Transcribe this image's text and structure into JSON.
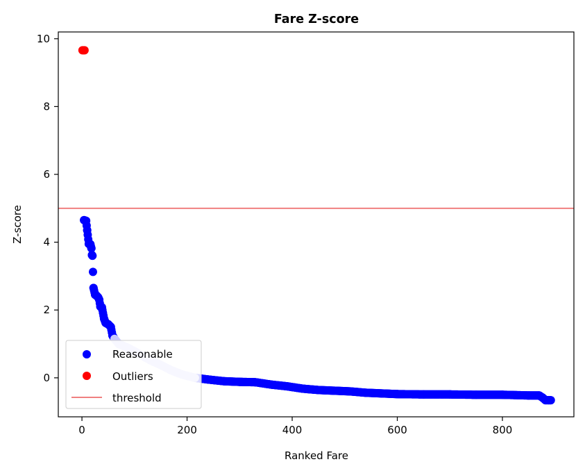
{
  "chart_data": {
    "type": "scatter",
    "title": "Fare Z-score",
    "xlabel": "Ranked Fare",
    "ylabel": "Z-score",
    "xlim": [
      -45,
      936
    ],
    "ylim": [
      -1.15,
      10.2
    ],
    "xticks": [
      0,
      200,
      400,
      600,
      800
    ],
    "yticks": [
      0,
      2,
      4,
      6,
      8,
      10
    ],
    "threshold": 5,
    "legend_position": "lower-left",
    "series": [
      {
        "name": "Reasonable",
        "color": "#0000ff",
        "faded_color": "#c8c8ff",
        "marker": "circle",
        "points": [
          [
            4,
            4.65
          ],
          [
            8,
            4.63
          ],
          [
            10,
            4.35
          ],
          [
            13,
            3.95
          ],
          [
            16,
            3.94
          ],
          [
            18,
            3.82
          ],
          [
            19,
            3.62
          ],
          [
            20,
            3.6
          ],
          [
            22,
            2.65
          ],
          [
            25,
            2.45
          ],
          [
            28,
            2.42
          ],
          [
            31,
            2.37
          ],
          [
            33,
            2.3
          ],
          [
            35,
            2.1
          ],
          [
            38,
            2.08
          ],
          [
            42,
            1.75
          ],
          [
            45,
            1.62
          ],
          [
            50,
            1.58
          ],
          [
            55,
            1.5
          ],
          [
            58,
            1.25
          ],
          [
            62,
            1.15
          ],
          [
            70,
            1.0
          ],
          [
            85,
            0.9
          ],
          [
            100,
            0.78
          ],
          [
            115,
            0.65
          ],
          [
            130,
            0.52
          ],
          [
            150,
            0.38
          ],
          [
            170,
            0.22
          ],
          [
            190,
            0.1
          ],
          [
            215,
            0.0
          ],
          [
            240,
            -0.05
          ],
          [
            270,
            -0.1
          ],
          [
            300,
            -0.12
          ],
          [
            330,
            -0.13
          ],
          [
            360,
            -0.2
          ],
          [
            390,
            -0.25
          ],
          [
            420,
            -0.32
          ],
          [
            450,
            -0.36
          ],
          [
            480,
            -0.38
          ],
          [
            510,
            -0.4
          ],
          [
            540,
            -0.44
          ],
          [
            570,
            -0.46
          ],
          [
            600,
            -0.48
          ],
          [
            650,
            -0.49
          ],
          [
            700,
            -0.49
          ],
          [
            750,
            -0.5
          ],
          [
            800,
            -0.5
          ],
          [
            850,
            -0.52
          ],
          [
            870,
            -0.52
          ],
          [
            876,
            -0.58
          ],
          [
            882,
            -0.66
          ],
          [
            888,
            -0.66
          ],
          [
            892,
            -0.66
          ]
        ],
        "faded_range": [
          62,
          215
        ]
      },
      {
        "name": "Outliers",
        "color": "#ff0000",
        "marker": "circle",
        "points": [
          [
            1,
            9.66
          ],
          [
            3,
            9.66
          ],
          [
            5,
            9.66
          ]
        ]
      },
      {
        "name": "threshold",
        "color": "#f08080",
        "marker": "line",
        "y": 5
      }
    ]
  }
}
